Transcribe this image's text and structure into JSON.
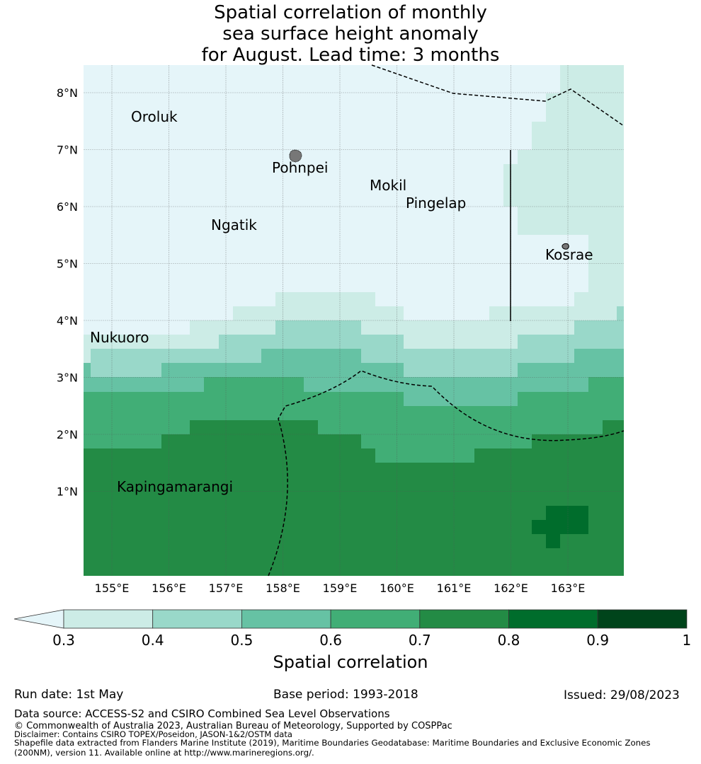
{
  "title_lines": [
    "Spatial correlation of monthly",
    "sea surface height anomaly",
    "for August. Lead time: 3 months"
  ],
  "map": {
    "lon_range": [
      154.5,
      164.0
    ],
    "lat_range": [
      -0.15,
      8.5
    ],
    "lon_ticks": [
      "155°E",
      "156°E",
      "157°E",
      "158°E",
      "159°E",
      "160°E",
      "161°E",
      "162°E",
      "163°E"
    ],
    "lon_tick_values": [
      155,
      156,
      157,
      158,
      159,
      160,
      161,
      162,
      163
    ],
    "lat_ticks": [
      "1°N",
      "2°N",
      "3°N",
      "4°N",
      "5°N",
      "6°N",
      "7°N",
      "8°N"
    ],
    "lat_tick_values": [
      1,
      2,
      3,
      4,
      5,
      6,
      7,
      8
    ],
    "places": [
      {
        "name": "Oroluk",
        "lon": 155.8,
        "lat": 7.55
      },
      {
        "name": "Pohnpei",
        "lon": 158.3,
        "lat": 6.85
      },
      {
        "name": "Mokil",
        "lon": 159.75,
        "lat": 6.7
      },
      {
        "name": "Pingelap",
        "lon": 160.7,
        "lat": 6.2
      },
      {
        "name": "Ngatik",
        "lon": 157.15,
        "lat": 5.8
      },
      {
        "name": "Kosrae",
        "lon": 163.0,
        "lat": 5.3
      },
      {
        "name": "Nukuoro",
        "lon": 154.98,
        "lat": 3.85
      },
      {
        "name": "Kapingamarangi",
        "lon": 154.9,
        "lat": 1.05
      }
    ],
    "colors": {
      "below": "#e5f5f9",
      "c1": "#ccece6",
      "c2": "#99d8c9",
      "c3": "#66c2a4",
      "c4": "#41ae76",
      "c5": "#238b45",
      "c6": "#006d2c",
      "c7": "#00441b"
    }
  },
  "colorbar": {
    "tick_labels": [
      "0.3",
      "0.4",
      "0.5",
      "0.6",
      "0.7",
      "0.8",
      "0.9",
      "1"
    ],
    "colors": [
      "#ccece6",
      "#99d8c9",
      "#66c2a4",
      "#41ae76",
      "#238b45",
      "#006d2c",
      "#00441b"
    ],
    "extend_color": "#e5f5f9",
    "label": "Spatial correlation"
  },
  "footer": {
    "run_date": "Run date: 1st May",
    "base_period": "Base period: 1993-2018",
    "issued": "Issued: 29/08/2023",
    "data_source": "Data source: ACCESS-S2 and CSIRO Combined Sea Level Observations",
    "copyright": "© Commonwealth of Australia 2023, Australian Bureau of Meteorology, Supported by COSPPac",
    "disclaimer": "Disclaimer: Contains CSIRO TOPEX/Poseidon, JASON-1&2/OSTM data",
    "shapefile_line1": "Shapefile data extracted from Flanders Marine Institute (2019), Maritime Boundaries Geodatabase: Maritime Boundaries and Exclusive Economic Zones",
    "shapefile_line2": "(200NM), version 11. Available online at http://www.marineregions.org/."
  }
}
